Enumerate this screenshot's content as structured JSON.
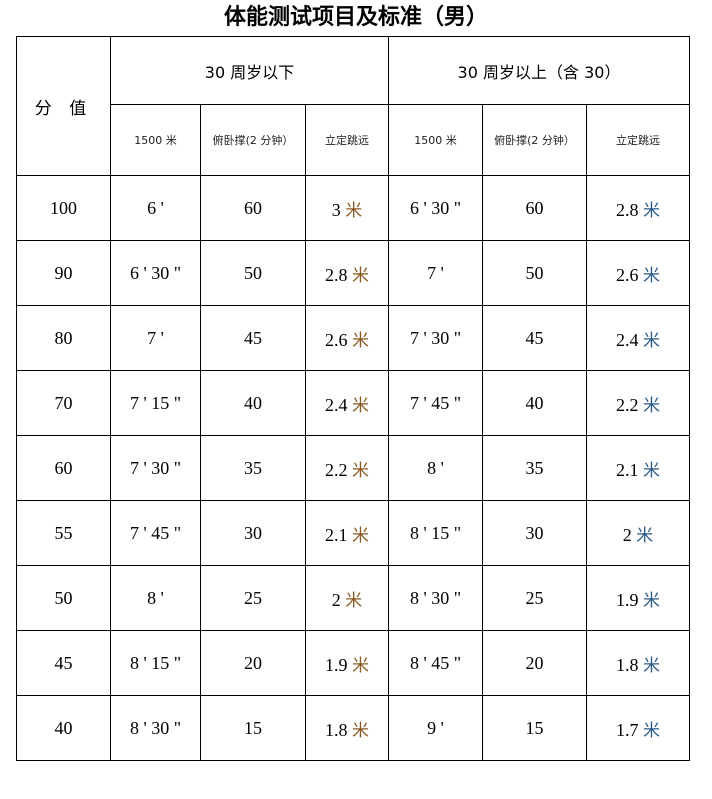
{
  "title": "体能测试项目及标准（男）",
  "header": {
    "score": "分 值",
    "group_under": "30 周岁以下",
    "group_over": "30 周岁以上（含 30）",
    "sub_under": [
      "1500 米",
      "俯卧撑(2 分钟）",
      "立定跳远"
    ],
    "sub_over": [
      "1500 米",
      "俯卧撑(2 分钟）",
      "立定跳远"
    ]
  },
  "unit": "米",
  "rows": [
    {
      "score": "100",
      "run1": "6 '",
      "push1": "60",
      "jump1": "3",
      "run2": "6 ' 30 \"",
      "push2": "60",
      "jump2": "2.8"
    },
    {
      "score": "90",
      "run1": "6 ' 30 \"",
      "push1": "50",
      "jump1": "2.8",
      "run2": "7 '",
      "push2": "50",
      "jump2": "2.6"
    },
    {
      "score": "80",
      "run1": "7 '",
      "push1": "45",
      "jump1": "2.6",
      "run2": "7 ' 30 \"",
      "push2": "45",
      "jump2": "2.4"
    },
    {
      "score": "70",
      "run1": "7 ' 15 \"",
      "push1": "40",
      "jump1": "2.4",
      "run2": "7 ' 45 \"",
      "push2": "40",
      "jump2": "2.2"
    },
    {
      "score": "60",
      "run1": "7 ' 30 \"",
      "push1": "35",
      "jump1": "2.2",
      "run2": "8 '",
      "push2": "35",
      "jump2": "2.1"
    },
    {
      "score": "55",
      "run1": "7 ' 45 \"",
      "push1": "30",
      "jump1": "2.1",
      "run2": "8 ' 15 \"",
      "push2": "30",
      "jump2": "2"
    },
    {
      "score": "50",
      "run1": "8 '",
      "push1": "25",
      "jump1": "2",
      "run2": "8 ' 30 \"",
      "push2": "25",
      "jump2": "1.9"
    },
    {
      "score": "45",
      "run1": "8 ' 15 \"",
      "push1": "20",
      "jump1": "1.9",
      "run2": "8 ' 45 \"",
      "push2": "20",
      "jump2": "1.8"
    },
    {
      "score": "40",
      "run1": "8 ' 30 \"",
      "push1": "15",
      "jump1": "1.8",
      "run2": "9 '",
      "push2": "15",
      "jump2": "1.7"
    }
  ]
}
